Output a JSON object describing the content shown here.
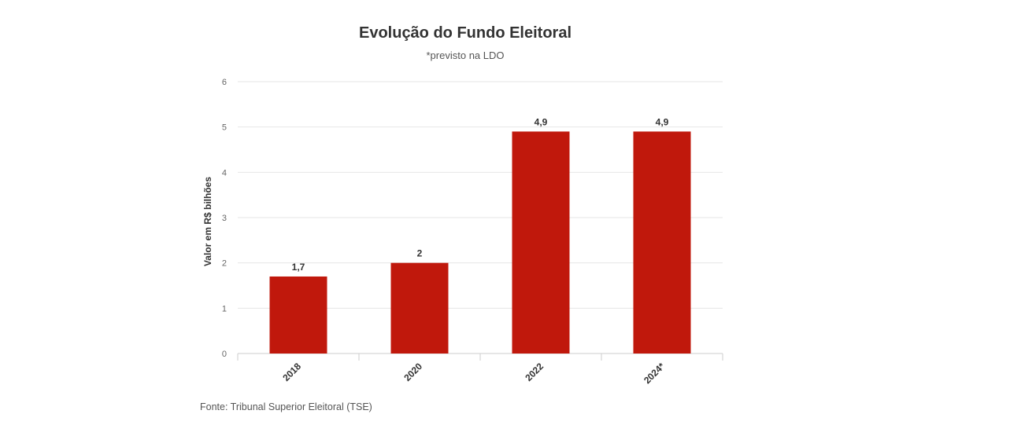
{
  "chart_data": {
    "type": "bar",
    "title": "Evolução do Fundo Eleitoral",
    "subtitle": "*previsto na LDO",
    "xlabel": "",
    "ylabel": "Valor em R$ bilhões",
    "categories": [
      "2018",
      "2020",
      "2022",
      "2024*"
    ],
    "values": [
      1.7,
      2,
      4.9,
      4.9
    ],
    "data_labels": [
      "1,7",
      "2",
      "4,9",
      "4,9"
    ],
    "yticks": [
      "0",
      "1",
      "2",
      "3",
      "4",
      "5",
      "6"
    ],
    "ylim": [
      0,
      6
    ],
    "grid": true,
    "legend": "none",
    "bar_color": "#c0180c"
  },
  "source": "Fonte: Tribunal Superior Eleitoral (TSE)"
}
